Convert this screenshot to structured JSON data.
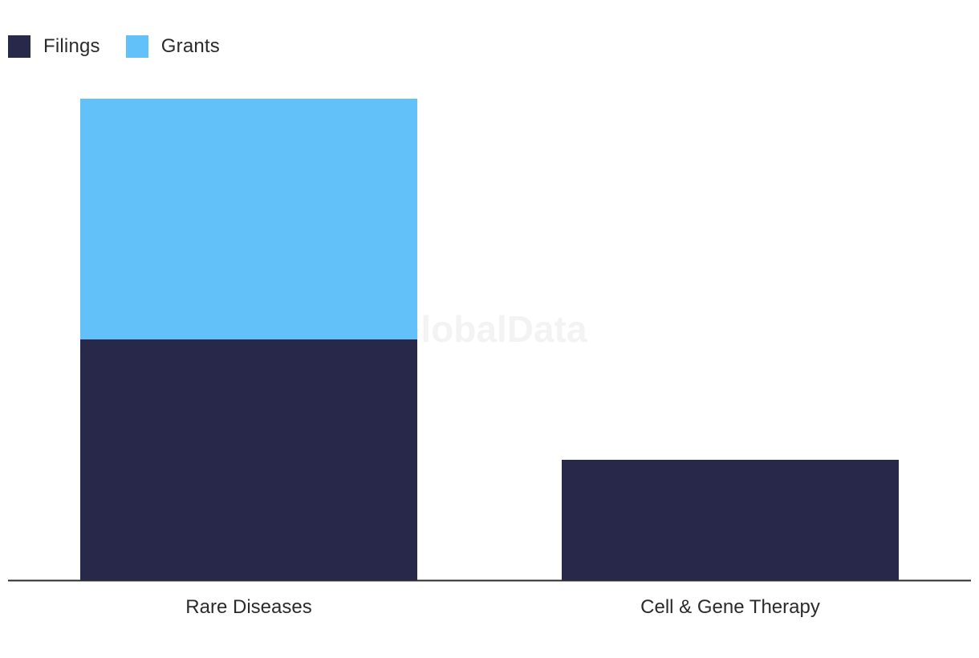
{
  "chart_data": {
    "type": "bar",
    "stacked": true,
    "categories": [
      "Rare Diseases",
      "Cell & Gene Therapy"
    ],
    "series": [
      {
        "name": "Filings",
        "values": [
          2,
          1
        ],
        "color": "#27284a"
      },
      {
        "name": "Grants",
        "values": [
          2,
          0
        ],
        "color": "#62c1f9"
      }
    ],
    "ylim": [
      0,
      4
    ],
    "grid": false,
    "legend_position": "top-left",
    "watermark": "GlobalData"
  }
}
